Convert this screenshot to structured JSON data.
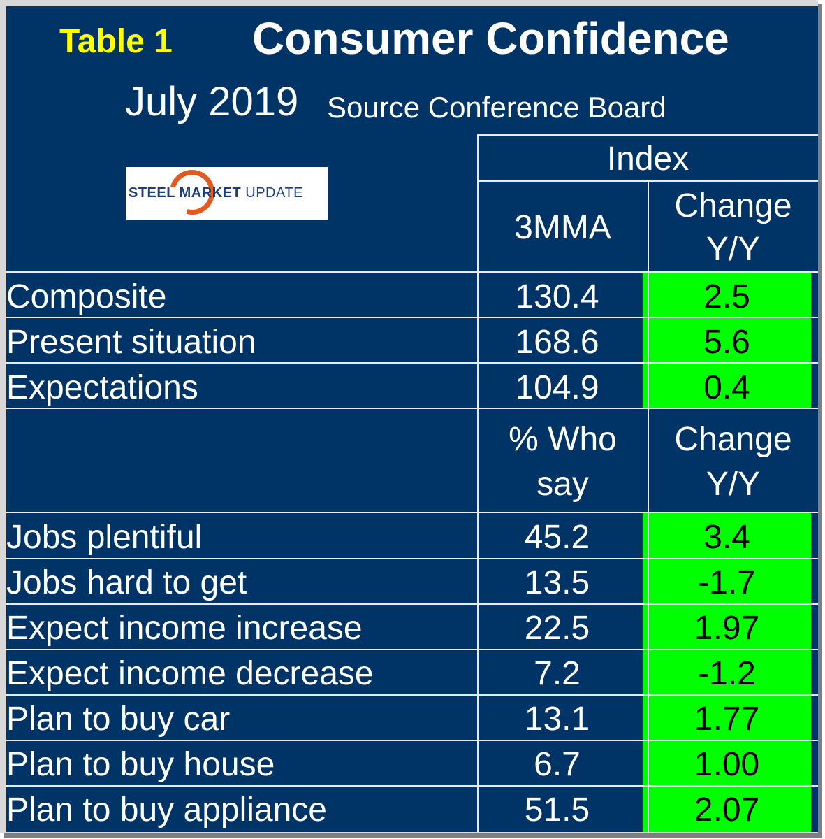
{
  "header": {
    "table_number": "Table 1",
    "title": "Consumer Confidence",
    "date": "July 2019",
    "source": "Source Conference Board"
  },
  "logo": {
    "text_bold": "STEEL MARKET",
    "text_regular": "UPDATE",
    "accent_color": "#e35a1c"
  },
  "columns": {
    "group_label": "Index",
    "index_value_header": "3MMA",
    "change_header_line1": "Change",
    "change_header_line2": "Y/Y",
    "pct_header_line1": "% Who",
    "pct_header_line2": "say",
    "change2_header_line1": "Change",
    "change2_header_line2": "Y/Y"
  },
  "index_rows": [
    {
      "label": "Composite",
      "value": "130.4",
      "change": "2.5"
    },
    {
      "label": "Present situation",
      "value": "168.6",
      "change": "5.6"
    },
    {
      "label": "Expectations",
      "value": "104.9",
      "change": "0.4"
    }
  ],
  "survey_rows": [
    {
      "label": "Jobs plentiful",
      "value": "45.2",
      "change": "3.4"
    },
    {
      "label": "Jobs hard to get",
      "value": "13.5",
      "change": "-1.7"
    },
    {
      "label": "Expect income increase",
      "value": "22.5",
      "change": "1.97"
    },
    {
      "label": "Expect income decrease",
      "value": "7.2",
      "change": "-1.2"
    },
    {
      "label": "Plan to buy car",
      "value": "13.1",
      "change": "1.77"
    },
    {
      "label": "Plan to buy house",
      "value": "6.7",
      "change": "1.00"
    },
    {
      "label": "Plan to buy appliance",
      "value": "51.5",
      "change": "2.07"
    }
  ],
  "colors": {
    "background": "#003366",
    "positive_highlight": "#00ff00",
    "table_number": "#ffff00"
  }
}
